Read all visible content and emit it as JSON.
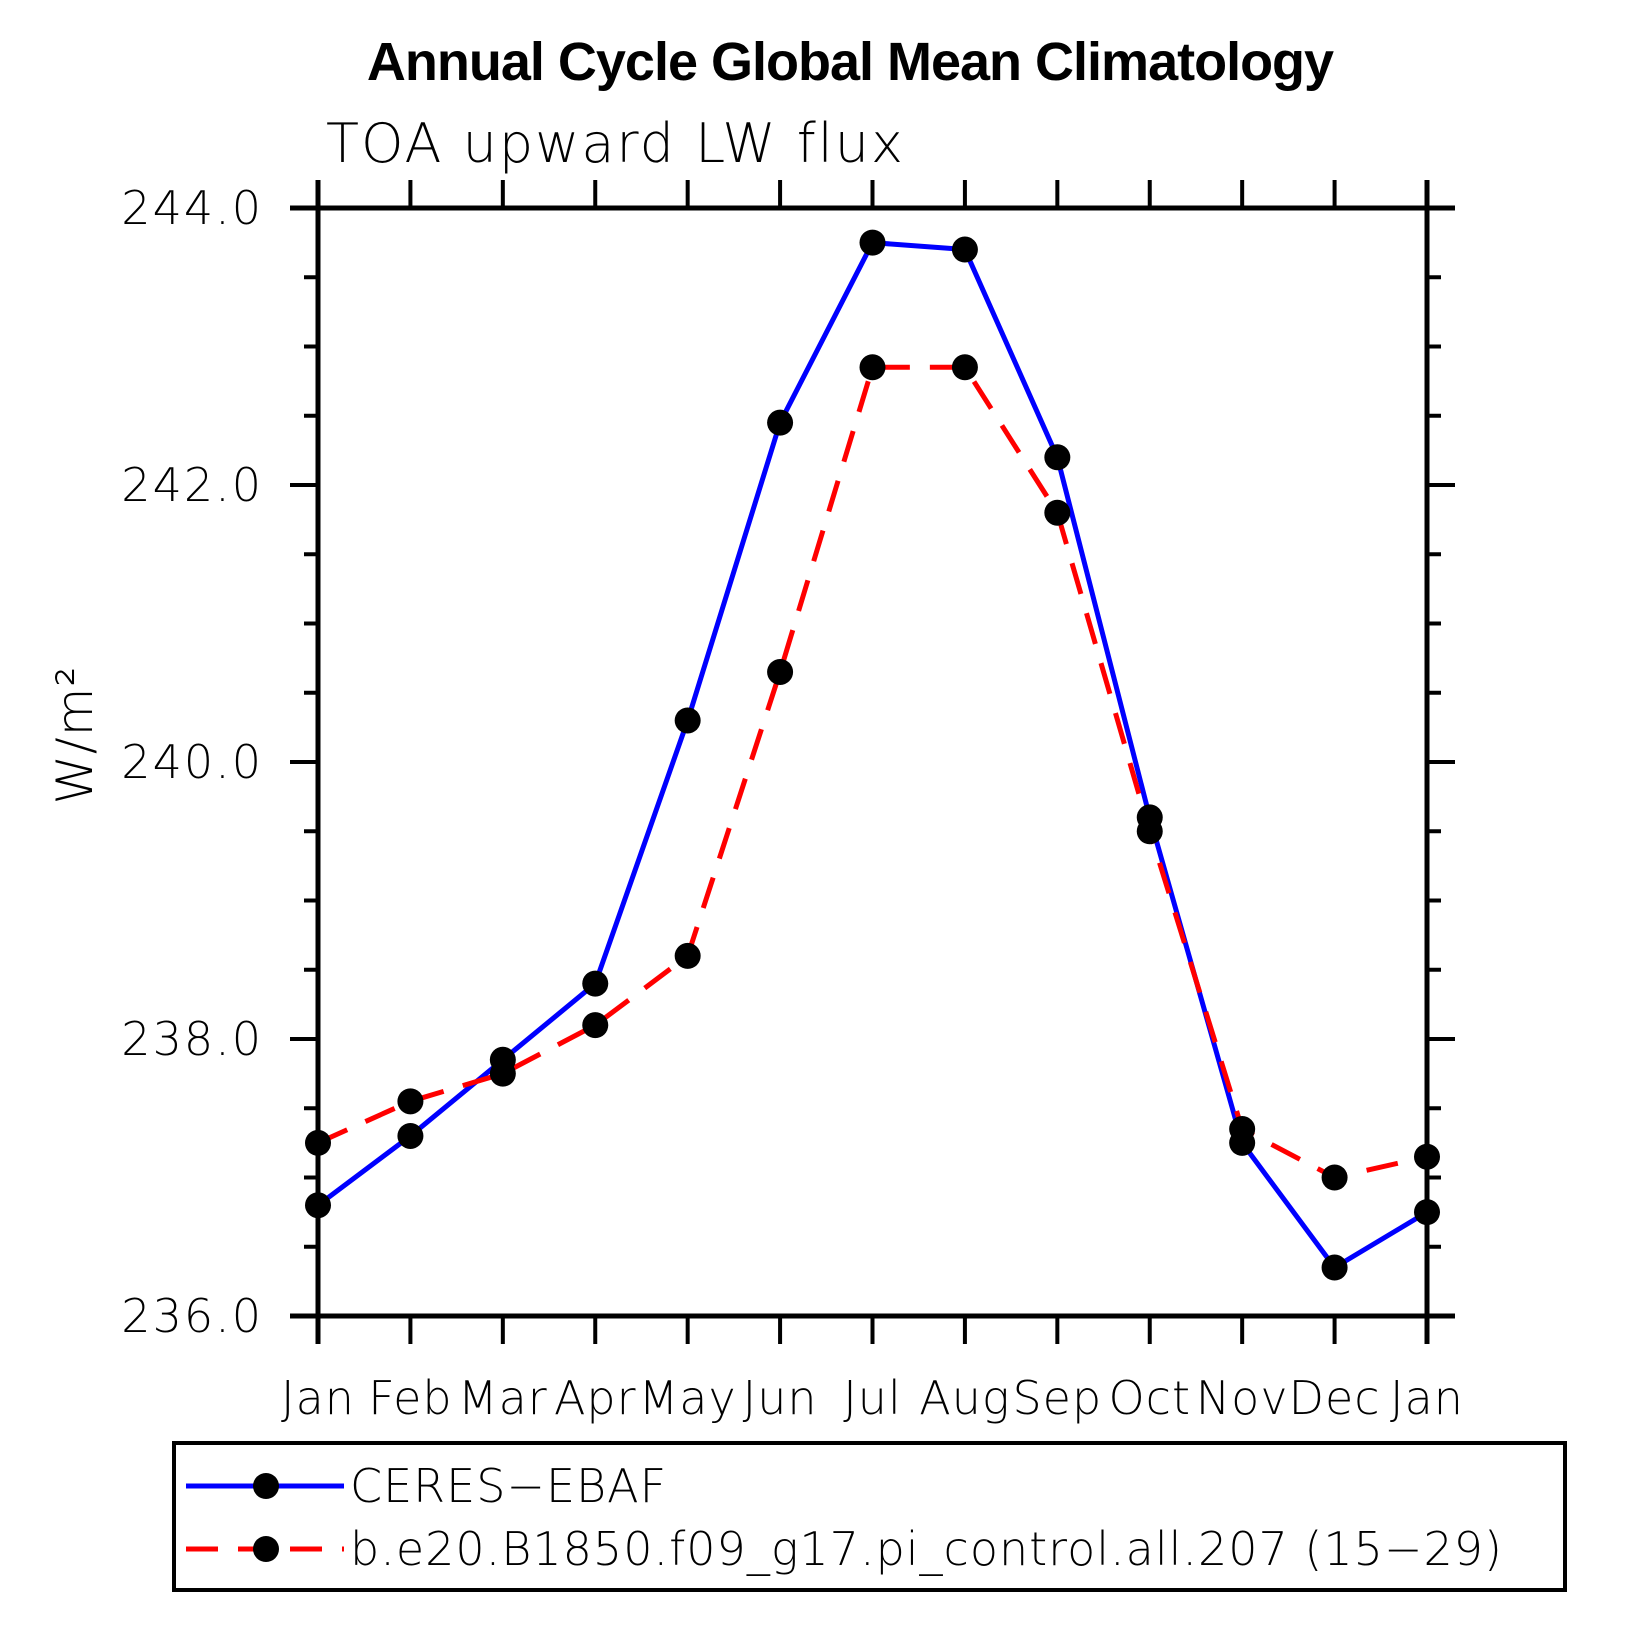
{
  "page": {
    "background": "#ffffff"
  },
  "chart_data": {
    "type": "line",
    "title": "Annual Cycle Global Mean Climatology",
    "subtitle": "TOA upward LW flux",
    "ylabel": "W/m²",
    "categories": [
      "Jan",
      "Feb",
      "Mar",
      "Apr",
      "May",
      "Jun",
      "Jul",
      "Aug",
      "Sep",
      "Oct",
      "Nov",
      "Dec",
      "Jan"
    ],
    "ylim": [
      236.0,
      244.0
    ],
    "ytick_step": 2.0,
    "yminor_step": 0.5,
    "yticks": [
      {
        "value": 244.0,
        "label": "244.0"
      },
      {
        "value": 242.0,
        "label": "242.0"
      },
      {
        "value": 240.0,
        "label": "240.0"
      },
      {
        "value": 238.0,
        "label": "238.0"
      },
      {
        "value": 236.0,
        "label": "236.0"
      }
    ],
    "grid": false,
    "legend_position": "bottom-left",
    "axis_color": "#000000",
    "marker_color": "#000000",
    "marker_shape": "filled-circle",
    "series": [
      {
        "label": "CERES−EBAF",
        "color": "#0000ff",
        "line_style": "solid",
        "values": [
          236.8,
          237.3,
          237.85,
          238.4,
          240.3,
          242.45,
          243.75,
          243.7,
          242.2,
          239.6,
          237.25,
          236.35,
          236.75
        ]
      },
      {
        "label": "b.e20.B1850.f09_g17.pi_control.all.207 (15−29)",
        "color": "#ff0000",
        "line_style": "dashed",
        "values": [
          237.25,
          237.55,
          237.75,
          238.1,
          238.6,
          240.65,
          242.85,
          242.85,
          241.8,
          239.5,
          237.35,
          237.0,
          237.15
        ]
      }
    ]
  }
}
